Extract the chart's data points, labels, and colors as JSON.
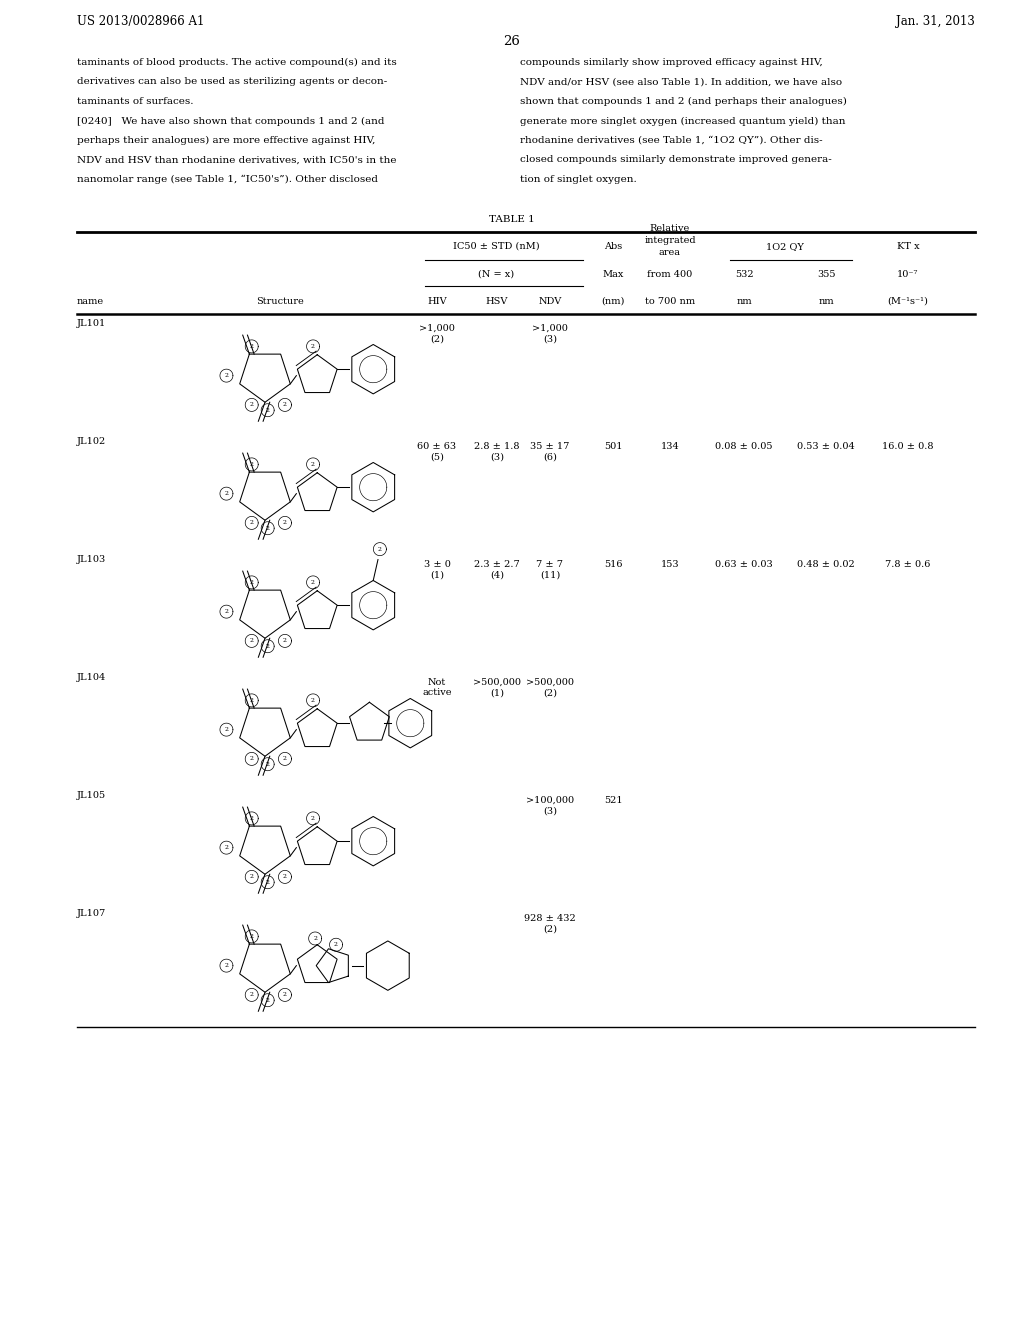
{
  "bg_color": "#ffffff",
  "page_width": 10.24,
  "page_height": 13.2,
  "header_left": "US 2013/0028966 A1",
  "header_right": "Jan. 31, 2013",
  "page_number": "26",
  "left_lines": [
    "taminants of blood products. The active compound(s) and its",
    "derivatives can also be used as sterilizing agents or decon-",
    "taminants of surfaces.",
    "[0240]   We have also shown that compounds 1 and 2 (and",
    "perhaps their analogues) are more effective against HIV,",
    "NDV and HSV than rhodanine derivatives, with IC50's in the",
    "nanomolar range (see Table 1, “IC50's”). Other disclosed"
  ],
  "right_lines": [
    "compounds similarly show improved efficacy against HIV,",
    "NDV and/or HSV (see also Table 1). In addition, we have also",
    "shown that compounds 1 and 2 (and perhaps their analogues)",
    "generate more singlet oxygen (increased quantum yield) than",
    "rhodanine derivatives (see Table 1, “1O2 QY”). Other dis-",
    "closed compounds similarly demonstrate improved genera-",
    "tion of singlet oxygen."
  ],
  "table_title": "TABLE 1",
  "rows": [
    {
      "name": "JL101",
      "hiv": ">1,000\n(2)",
      "hsv": "",
      "ndv": ">1,000\n(3)",
      "abs_max": "",
      "rel_area": "",
      "qy_532": "",
      "qy_355": "",
      "kt": ""
    },
    {
      "name": "JL102",
      "hiv": "60 ± 63\n(5)",
      "hsv": "2.8 ± 1.8\n(3)",
      "ndv": "35 ± 17\n(6)",
      "abs_max": "501",
      "rel_area": "134",
      "qy_532": "0.08 ± 0.05",
      "qy_355": "0.53 ± 0.04",
      "kt": "16.0 ± 0.8"
    },
    {
      "name": "JL103",
      "hiv": "3 ± 0\n(1)",
      "hsv": "2.3 ± 2.7\n(4)",
      "ndv": "7 ± 7\n(11)",
      "abs_max": "516",
      "rel_area": "153",
      "qy_532": "0.63 ± 0.03",
      "qy_355": "0.48 ± 0.02",
      "kt": "7.8 ± 0.6"
    },
    {
      "name": "JL104",
      "hiv": "Not\nactive",
      "hsv": ">500,000\n(1)",
      "ndv": ">500,000\n(2)",
      "abs_max": "",
      "rel_area": "",
      "qy_532": "",
      "qy_355": "",
      "kt": ""
    },
    {
      "name": "JL105",
      "hiv": "",
      "hsv": "",
      "ndv": ">100,000\n(3)",
      "abs_max": "521",
      "rel_area": "",
      "qy_532": "",
      "qy_355": "",
      "kt": ""
    },
    {
      "name": "JL107",
      "hiv": "",
      "hsv": "",
      "ndv": "928 ± 432\n(2)",
      "abs_max": "",
      "rel_area": "",
      "qy_532": "",
      "qy_355": "",
      "kt": ""
    }
  ]
}
